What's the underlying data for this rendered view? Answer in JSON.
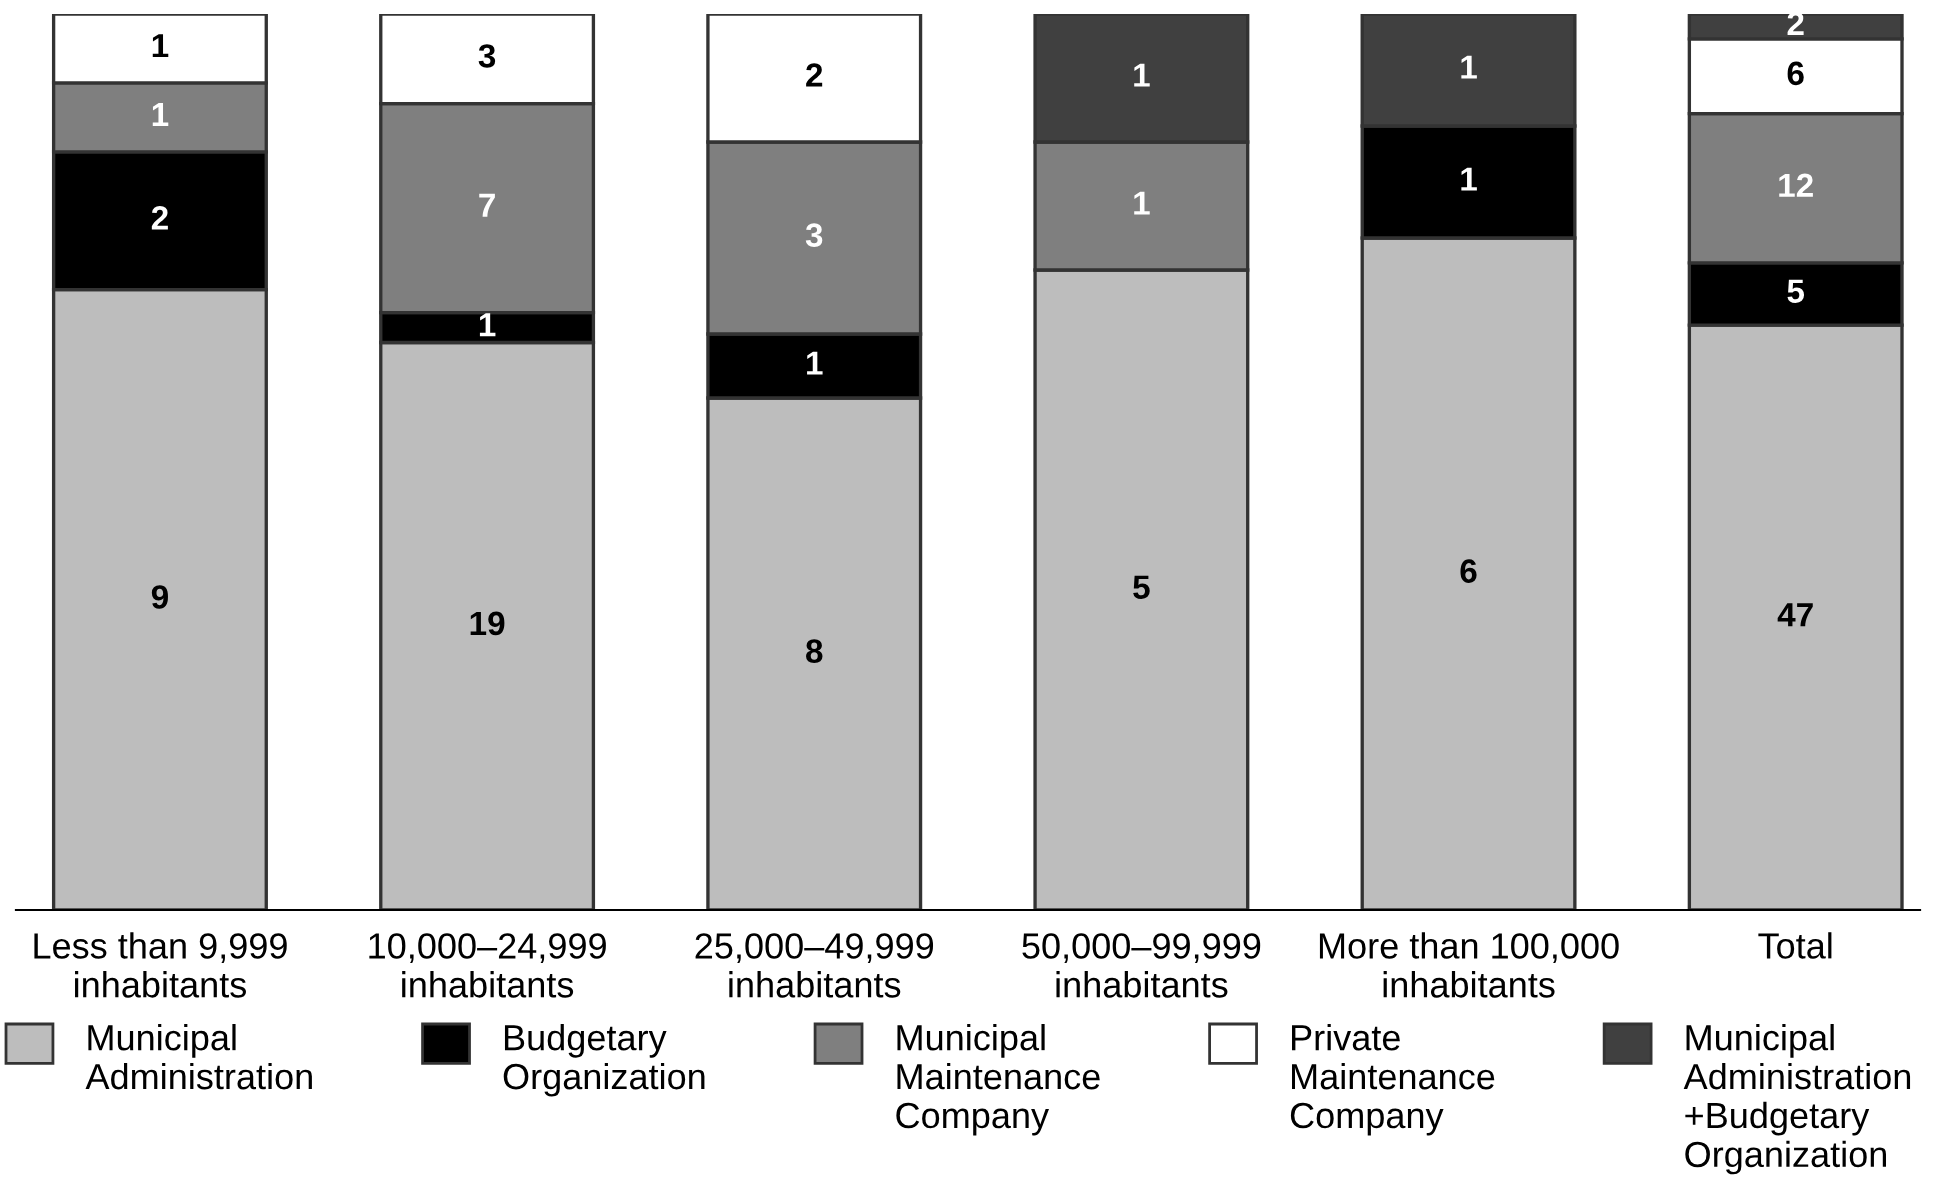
{
  "chart_data": [
    {
      "type": "bar",
      "stacked": true,
      "data_labels": true,
      "legend": "bottom",
      "categories": [
        "Less than 9,999\ninhabitants"
      ],
      "series": [
        {
          "name": "Municipal\nAdministration",
          "color": "#bdbdbd",
          "values": [
            9
          ]
        },
        {
          "name": "Budgetary\nOrganization",
          "color": "#000000",
          "values": [
            2
          ]
        },
        {
          "name": "Municipal\nMaintenance\nCompany",
          "color": "#7f7f7f",
          "values": [
            1
          ]
        },
        {
          "name": "Private\nMaintenance\nCompany",
          "color": "#ffffff",
          "values": [
            1
          ]
        },
        {
          "name": "Municipal\nAdministration\n+Budgetary\nOrganization",
          "color": "#404040",
          "values": [
            null
          ]
        }
      ]
    },
    {
      "type": "bar",
      "stacked": true,
      "data_labels": true,
      "categories": [
        "10,000–24,999\ninhabitants"
      ],
      "series": [
        {
          "color": "#bdbdbd",
          "values": [
            19
          ]
        },
        {
          "color": "#000000",
          "values": [
            1
          ]
        },
        {
          "color": "#7f7f7f",
          "values": [
            7
          ]
        },
        {
          "color": "#ffffff",
          "values": [
            3
          ]
        }
      ]
    },
    {
      "type": "bar",
      "stacked": true,
      "data_labels": true,
      "categories": [
        "25,000–49,999\ninhabitants"
      ],
      "series": [
        {
          "color": "#bdbdbd",
          "values": [
            8
          ]
        },
        {
          "color": "#000000",
          "values": [
            1
          ]
        },
        {
          "color": "#7f7f7f",
          "values": [
            3
          ]
        },
        {
          "color": "#ffffff",
          "values": [
            2
          ]
        }
      ]
    },
    {
      "type": "bar",
      "stacked": true,
      "data_labels": true,
      "categories": [
        "50,000–99,999\ninhabitants"
      ],
      "series": [
        {
          "color": "#bdbdbd",
          "values": [
            5
          ]
        },
        {
          "color": "#7f7f7f",
          "values": [
            1
          ]
        },
        {
          "color": "#404040",
          "values": [
            1
          ]
        }
      ]
    },
    {
      "type": "bar",
      "stacked": true,
      "data_labels": true,
      "categories": [
        "More than 100,000\ninhabitants"
      ],
      "series": [
        {
          "color": "#bdbdbd",
          "values": [
            6
          ]
        },
        {
          "color": "#000000",
          "values": [
            1
          ]
        },
        {
          "color": "#404040",
          "values": [
            1
          ]
        }
      ]
    },
    {
      "type": "bar",
      "stacked": true,
      "data_labels": true,
      "categories": [
        "Total"
      ],
      "series": [
        {
          "color": "#bdbdbd",
          "values": [
            47
          ]
        },
        {
          "color": "#000000",
          "values": [
            5
          ]
        },
        {
          "color": "#7f7f7f",
          "values": [
            12
          ]
        },
        {
          "color": "#ffffff",
          "values": [
            6
          ]
        },
        {
          "color": "#404040",
          "values": [
            2
          ]
        }
      ]
    }
  ]
}
